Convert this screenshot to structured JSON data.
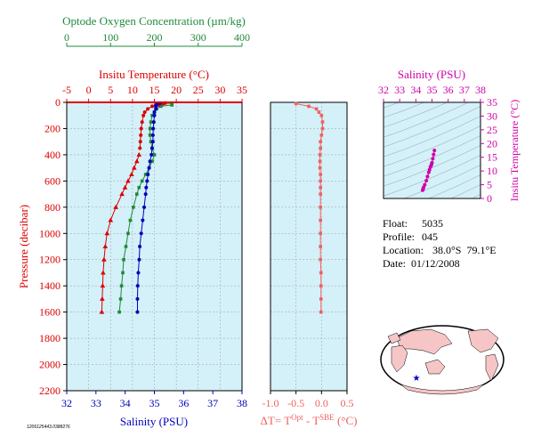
{
  "colors": {
    "oxygen": "#1f8a3a",
    "temperature": "#dd0000",
    "salinity": "#0000bb",
    "delta": "#f06060",
    "ts": "#d000a8",
    "panel_bg": "#d4f0f8",
    "grid": "#a0a0a0"
  },
  "chart_data": [
    {
      "type": "scatter",
      "panel": "profile",
      "ylabel": "Pressure (decibar)",
      "ylim": [
        2200,
        0
      ],
      "yticks": [
        0,
        200,
        400,
        600,
        800,
        1000,
        1200,
        1400,
        1600,
        1800,
        2000,
        2200
      ],
      "axes": {
        "oxygen": {
          "label": "Optode Oxygen Concentration (µm/kg)",
          "range": [
            0,
            400
          ],
          "ticks": [
            0,
            100,
            200,
            300,
            400
          ]
        },
        "temperature": {
          "label": "Insitu Temperature (°C)",
          "range": [
            -5,
            35
          ],
          "ticks": [
            -5,
            0,
            5,
            10,
            15,
            20,
            25,
            30,
            35
          ]
        },
        "salinity": {
          "label": "Salinity (PSU)",
          "range": [
            32,
            38
          ],
          "ticks": [
            32,
            33,
            34,
            35,
            36,
            37,
            38
          ]
        }
      },
      "series": [
        {
          "key": "oxygen",
          "marker": "square",
          "pressure": [
            5,
            10,
            20,
            30,
            50,
            75,
            100,
            150,
            200,
            250,
            300,
            350,
            400,
            450,
            500,
            550,
            600,
            650,
            700,
            800,
            900,
            1000,
            1100,
            1200,
            1300,
            1400,
            1500,
            1600
          ],
          "values": [
            225,
            240,
            240,
            215,
            205,
            200,
            195,
            192,
            190,
            190,
            192,
            195,
            200,
            195,
            188,
            180,
            172,
            165,
            160,
            152,
            145,
            140,
            135,
            130,
            128,
            125,
            123,
            120
          ]
        },
        {
          "key": "temperature",
          "marker": "circle",
          "pressure": [
            5,
            10,
            20,
            30,
            50,
            75,
            100,
            150,
            200,
            250,
            300,
            350
          ],
          "values": [
            17.5,
            17.0,
            16.0,
            14.5,
            13.5,
            12.8,
            12.5,
            12.2,
            12.0,
            11.9,
            11.8,
            11.7
          ]
        },
        {
          "key": "temperature",
          "marker": "triangle",
          "pressure": [
            400,
            450,
            500,
            550,
            600,
            650,
            700,
            800,
            900,
            1000,
            1100,
            1200,
            1300,
            1400,
            1500,
            1600
          ],
          "values": [
            11.5,
            11.0,
            10.4,
            9.8,
            9.0,
            8.3,
            7.6,
            6.2,
            5.0,
            4.2,
            3.8,
            3.5,
            3.3,
            3.2,
            3.1,
            3.0
          ]
        },
        {
          "key": "salinity",
          "marker": "circle",
          "pressure": [
            5,
            10,
            20,
            30,
            50,
            75,
            100,
            150,
            200,
            250,
            300,
            350,
            400,
            450,
            500,
            550,
            600,
            650,
            700,
            800,
            900,
            1000,
            1100,
            1200,
            1300,
            1400,
            1500,
            1600
          ],
          "values": [
            35.2,
            35.1,
            35.05,
            35.05,
            35.05,
            35.0,
            35.0,
            34.98,
            34.96,
            34.95,
            34.95,
            34.92,
            34.9,
            34.85,
            34.82,
            34.78,
            34.75,
            34.72,
            34.7,
            34.65,
            34.6,
            34.55,
            34.5,
            34.48,
            34.45,
            34.43,
            34.42,
            34.42
          ]
        }
      ]
    },
    {
      "type": "scatter",
      "panel": "delta",
      "xlabel_main": "ΔT= T",
      "xlabel_sup1": "Opt",
      "xlabel_mid": " - T",
      "xlabel_sup2": "SBE",
      "xlabel_end": " (°C)",
      "xlim": [
        -1.0,
        0.5
      ],
      "xticks": [
        -1.0,
        -0.5,
        0.0,
        0.5
      ],
      "xticklabels": [
        "-1.0",
        "-0.5",
        "0.0",
        "0.5"
      ],
      "pressure": [
        10,
        30,
        50,
        75,
        100,
        150,
        200,
        250,
        300,
        350,
        400,
        450,
        500,
        550,
        600,
        650,
        700,
        800,
        900,
        1000,
        1100,
        1200,
        1300,
        1400,
        1500,
        1600
      ],
      "values": [
        -0.5,
        -0.25,
        -0.1,
        -0.05,
        0.0,
        0.02,
        0.02,
        0.0,
        -0.02,
        -0.02,
        -0.03,
        -0.03,
        -0.03,
        -0.02,
        -0.02,
        -0.02,
        -0.02,
        -0.02,
        -0.02,
        -0.02,
        -0.02,
        -0.02,
        -0.01,
        -0.01,
        -0.01,
        -0.01
      ]
    },
    {
      "type": "scatter",
      "panel": "ts",
      "xlabel": "Salinity (PSU)",
      "ylabel": "Insitu Temperature (°C)",
      "xlim": [
        32,
        38
      ],
      "ylim": [
        0,
        35
      ],
      "xticks": [
        32,
        33,
        34,
        35,
        36,
        37,
        38
      ],
      "yticks": [
        0,
        5,
        10,
        15,
        20,
        25,
        30,
        35
      ],
      "salinity": [
        35.15,
        35.1,
        35.05,
        35.0,
        34.97,
        34.95,
        34.9,
        34.85,
        34.8,
        34.72,
        34.65,
        34.55,
        34.48,
        34.45,
        34.42
      ],
      "temperature": [
        17.5,
        16.0,
        14.5,
        13.0,
        12.5,
        12.0,
        11.5,
        10.5,
        9.5,
        8.0,
        6.5,
        5.0,
        4.0,
        3.5,
        3.0
      ]
    }
  ],
  "info": {
    "float_label": "Float:",
    "float_value": "5035",
    "profile_label": "Profile:",
    "profile_value": "045",
    "location_label": "Location:",
    "location_value": "38.0°S  79.1°E",
    "date_label": "Date:",
    "date_value": "01/12/2008"
  },
  "map": {
    "marker_lat": -38.0,
    "marker_lon": 79.1
  },
  "footer": "1206125443.0388276"
}
